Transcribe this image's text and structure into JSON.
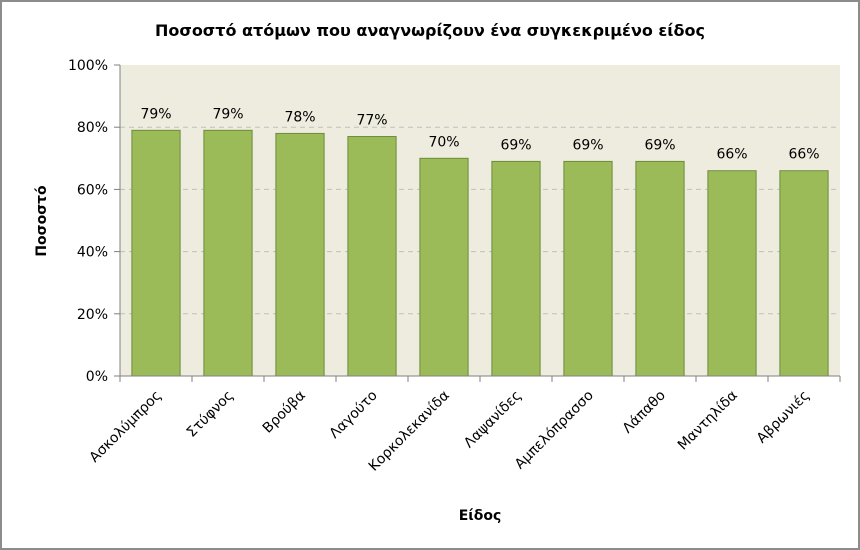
{
  "chart_data": {
    "type": "bar",
    "title": "Ποσοστό ατόμων που αναγνωρίζουν ένα συγκεκριμένο είδος",
    "xlabel": "Είδος",
    "ylabel": "Ποσοστό",
    "categories": [
      "Ασκολύμπρος",
      "Στύφνος",
      "Βρούβα",
      "Λαγούτο",
      "Κορκολεκανίδα",
      "Λαψανίδες",
      "Αμπελόπρασσο",
      "Λάπαθο",
      "Μαντηλίδα",
      "Αβρωνιές"
    ],
    "values": [
      79,
      79,
      78,
      77,
      70,
      69,
      69,
      69,
      66,
      66
    ],
    "data_labels": [
      "79%",
      "79%",
      "78%",
      "77%",
      "70%",
      "69%",
      "69%",
      "69%",
      "66%",
      "66%"
    ],
    "ylim": [
      0,
      100
    ],
    "yticks": [
      "0%",
      "20%",
      "40%",
      "60%",
      "80%",
      "100%"
    ],
    "grid": true,
    "legend": false,
    "colors": {
      "bar_fill": "#9bbb59",
      "bar_stroke": "#6e8c3a",
      "plot_background": "#eeecdf",
      "gridline": "#bfbfbf",
      "axis": "#808080"
    }
  }
}
